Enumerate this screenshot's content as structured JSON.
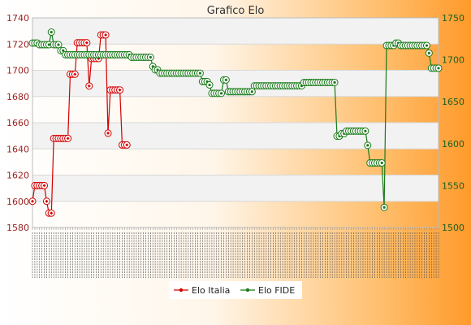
{
  "chart_data": {
    "type": "line",
    "title": "Grafico Elo",
    "xlabel": "",
    "ylabel": "",
    "y_left": {
      "min": 1580,
      "max": 1740,
      "ticks": [
        1580,
        1600,
        1620,
        1640,
        1660,
        1680,
        1700,
        1720,
        1740
      ]
    },
    "y_right": {
      "min": 1500,
      "max": 1750,
      "ticks": [
        1500,
        1550,
        1600,
        1650,
        1700,
        1750
      ]
    },
    "grid": true,
    "legend": "bottom",
    "colors": {
      "italia": "#d40000",
      "fide": "#1a7a1a",
      "band": "#f2f2f2",
      "grid": "#d8d8d8"
    },
    "series": [
      {
        "name": "Elo Italia",
        "axis": "left",
        "values": [
          1600,
          1612,
          1612,
          1612,
          1612,
          1612,
          1600,
          1591,
          1591,
          1648,
          1648,
          1648,
          1648,
          1648,
          1648,
          1648,
          1697,
          1697,
          1697,
          1721,
          1721,
          1721,
          1721,
          1721,
          1688,
          1709,
          1709,
          1709,
          1709,
          1727,
          1727,
          1727,
          1652,
          1685,
          1685,
          1685,
          1685,
          1685,
          1643,
          1643,
          1643
        ]
      },
      {
        "name": "Elo FIDE",
        "axis": "right",
        "values": [
          1720,
          1720,
          1720,
          1718,
          1718,
          1718,
          1718,
          1718,
          1733,
          1718,
          1718,
          1718,
          1711,
          1711,
          1706,
          1706,
          1706,
          1706,
          1706,
          1706,
          1706,
          1706,
          1706,
          1706,
          1706,
          1706,
          1706,
          1706,
          1706,
          1706,
          1706,
          1706,
          1706,
          1706,
          1706,
          1706,
          1706,
          1706,
          1706,
          1706,
          1706,
          1706,
          1703,
          1703,
          1703,
          1703,
          1703,
          1703,
          1703,
          1703,
          1703,
          1692,
          1688,
          1688,
          1684,
          1684,
          1684,
          1684,
          1684,
          1684,
          1684,
          1684,
          1684,
          1684,
          1684,
          1684,
          1684,
          1684,
          1684,
          1684,
          1684,
          1684,
          1674,
          1674,
          1674,
          1670,
          1660,
          1660,
          1660,
          1660,
          1660,
          1676,
          1676,
          1662,
          1662,
          1662,
          1662,
          1662,
          1662,
          1662,
          1662,
          1662,
          1662,
          1662,
          1669,
          1669,
          1669,
          1669,
          1669,
          1669,
          1669,
          1669,
          1669,
          1669,
          1669,
          1669,
          1669,
          1669,
          1669,
          1669,
          1669,
          1669,
          1669,
          1669,
          1669,
          1673,
          1673,
          1673,
          1673,
          1673,
          1673,
          1673,
          1673,
          1673,
          1673,
          1673,
          1673,
          1673,
          1673,
          1609,
          1609,
          1612,
          1612,
          1615,
          1615,
          1615,
          1615,
          1615,
          1615,
          1615,
          1615,
          1615,
          1598,
          1577,
          1577,
          1577,
          1577,
          1577,
          1577,
          1524,
          1717,
          1717,
          1717,
          1717,
          1720,
          1720,
          1717,
          1717,
          1717,
          1717,
          1717,
          1717,
          1717,
          1717,
          1717,
          1717,
          1717,
          1717,
          1708,
          1690,
          1690,
          1690,
          1690
        ]
      }
    ]
  }
}
